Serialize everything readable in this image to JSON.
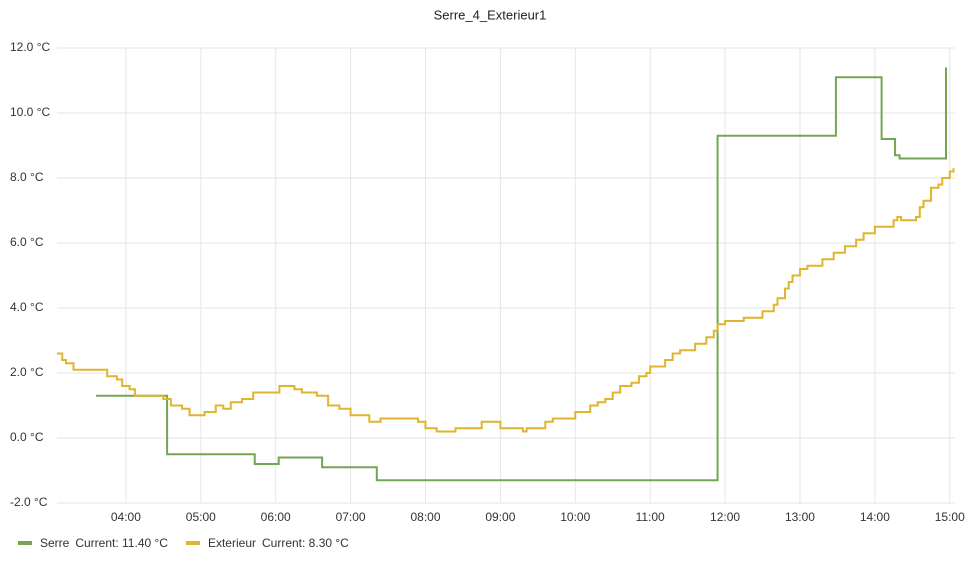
{
  "chart_data": {
    "type": "step-line",
    "title": "Serre_4_Exterieur1",
    "xlim": [
      3.08,
      15.07
    ],
    "ylim": [
      -2,
      12
    ],
    "xticks": [
      {
        "value": 4,
        "label": "04:00"
      },
      {
        "value": 5,
        "label": "05:00"
      },
      {
        "value": 6,
        "label": "06:00"
      },
      {
        "value": 7,
        "label": "07:00"
      },
      {
        "value": 8,
        "label": "08:00"
      },
      {
        "value": 9,
        "label": "09:00"
      },
      {
        "value": 10,
        "label": "10:00"
      },
      {
        "value": 11,
        "label": "11:00"
      },
      {
        "value": 12,
        "label": "12:00"
      },
      {
        "value": 13,
        "label": "13:00"
      },
      {
        "value": 14,
        "label": "14:00"
      },
      {
        "value": 15,
        "label": "15:00"
      }
    ],
    "yticks": [
      {
        "value": -2,
        "label": "-2.0 °C"
      },
      {
        "value": 0,
        "label": "0.0 °C"
      },
      {
        "value": 2,
        "label": "2.0 °C"
      },
      {
        "value": 4,
        "label": "4.0 °C"
      },
      {
        "value": 6,
        "label": "6.0 °C"
      },
      {
        "value": 8,
        "label": "8.0 °C"
      },
      {
        "value": 10,
        "label": "10.0 °C"
      },
      {
        "value": 12,
        "label": "12.0 °C"
      }
    ],
    "grid": true,
    "series": [
      {
        "name": "Serre",
        "legend_label": "Current: 11.40 °C",
        "color": "#73a553",
        "x": [
          3.6,
          4.55,
          5.72,
          6.04,
          6.62,
          7.35,
          11.9,
          13.48,
          14.09,
          14.27,
          14.33,
          14.95
        ],
        "values": [
          1.3,
          -0.5,
          -0.8,
          -0.6,
          -0.9,
          -1.3,
          9.3,
          11.1,
          9.2,
          8.7,
          8.6,
          11.4
        ]
      },
      {
        "name": "Exterieur",
        "legend_label": "Current: 8.30 °C",
        "color": "#e0b42c",
        "x": [
          3.08,
          3.15,
          3.2,
          3.3,
          3.75,
          3.88,
          3.95,
          4.05,
          4.12,
          4.5,
          4.6,
          4.75,
          4.85,
          5.05,
          5.2,
          5.3,
          5.4,
          5.55,
          5.7,
          6.05,
          6.25,
          6.35,
          6.55,
          6.7,
          6.85,
          7.0,
          7.25,
          7.4,
          7.9,
          8.0,
          8.15,
          8.4,
          8.75,
          9.0,
          9.3,
          9.35,
          9.6,
          9.7,
          10.0,
          10.2,
          10.3,
          10.4,
          10.5,
          10.6,
          10.75,
          10.85,
          10.95,
          11.0,
          11.2,
          11.3,
          11.4,
          11.6,
          11.75,
          11.85,
          11.9,
          12.0,
          12.25,
          12.5,
          12.65,
          12.7,
          12.8,
          12.85,
          12.9,
          13.0,
          13.1,
          13.3,
          13.45,
          13.6,
          13.75,
          13.85,
          14.0,
          14.25,
          14.3,
          14.35,
          14.55,
          14.6,
          14.65,
          14.75,
          14.85,
          14.9,
          15.0,
          15.05
        ],
        "values": [
          2.6,
          2.4,
          2.3,
          2.1,
          1.9,
          1.8,
          1.6,
          1.5,
          1.3,
          1.2,
          1.0,
          0.9,
          0.7,
          0.8,
          1.0,
          0.9,
          1.1,
          1.2,
          1.4,
          1.6,
          1.5,
          1.4,
          1.3,
          1.0,
          0.9,
          0.7,
          0.5,
          0.6,
          0.5,
          0.3,
          0.2,
          0.3,
          0.5,
          0.3,
          0.2,
          0.3,
          0.5,
          0.6,
          0.8,
          1.0,
          1.1,
          1.2,
          1.4,
          1.6,
          1.7,
          1.9,
          2.0,
          2.2,
          2.4,
          2.6,
          2.7,
          2.9,
          3.1,
          3.3,
          3.5,
          3.6,
          3.7,
          3.9,
          4.1,
          4.3,
          4.6,
          4.8,
          5.0,
          5.2,
          5.3,
          5.5,
          5.7,
          5.9,
          6.1,
          6.3,
          6.5,
          6.7,
          6.8,
          6.7,
          6.8,
          7.1,
          7.3,
          7.7,
          7.8,
          8.0,
          8.2,
          8.3
        ]
      }
    ]
  }
}
